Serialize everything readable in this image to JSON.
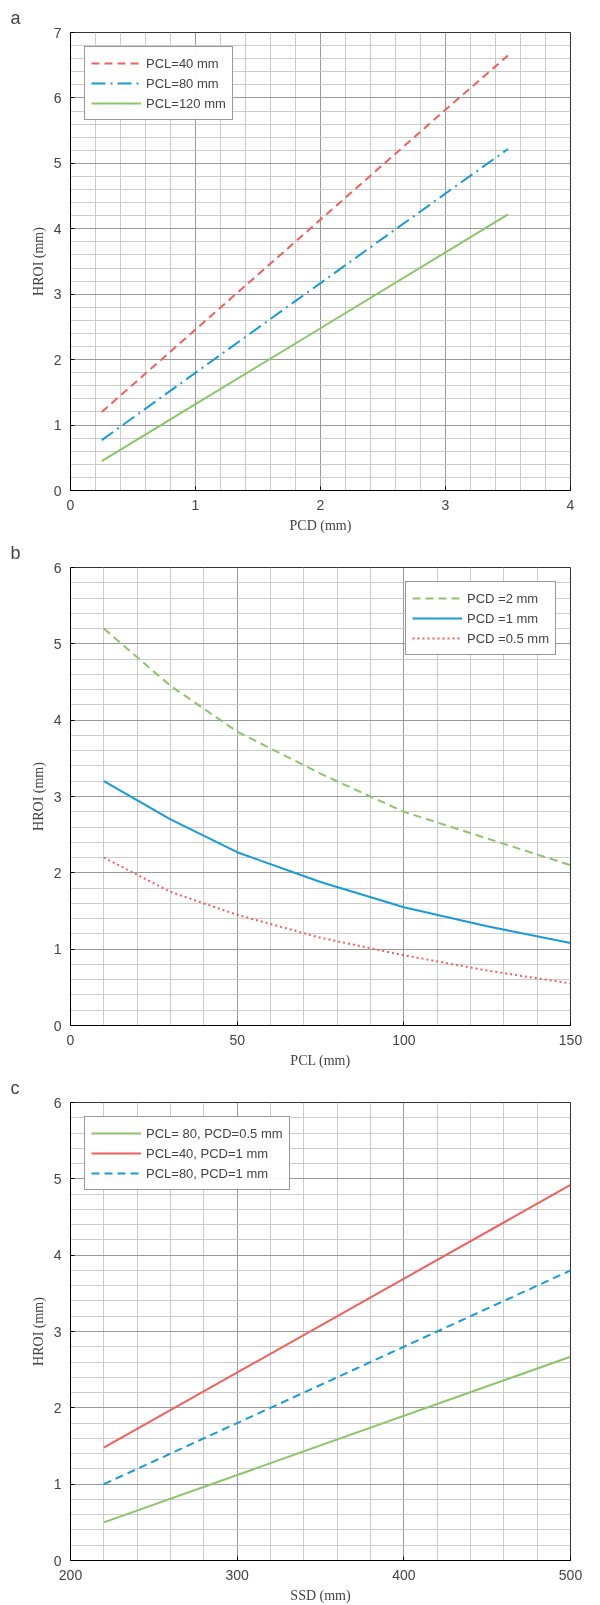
{
  "chart_data": [
    {
      "type": "line",
      "title": "a",
      "xlabel": "PCD (mm)",
      "ylabel": "HROI (mm)",
      "xlim": [
        0,
        4
      ],
      "xticks": [
        0,
        1,
        2,
        3,
        4
      ],
      "ylim": [
        0,
        7
      ],
      "yticks": [
        0,
        1,
        2,
        3,
        4,
        5,
        6,
        7
      ],
      "grid": true,
      "legend": "top left",
      "x": [
        0.25,
        1,
        2,
        3,
        3.5
      ],
      "series": [
        {
          "name": "PCL=40 mm",
          "color": "#f0605d",
          "line_style": "dashed",
          "values": [
            1.2,
            2.46,
            4.14,
            5.82,
            6.65
          ]
        },
        {
          "name": "PCL=80 mm",
          "color": "#1a9ad6",
          "line_style": "dashdot",
          "values": [
            0.77,
            1.8,
            3.17,
            4.54,
            5.22
          ]
        },
        {
          "name": "PCL=120 mm",
          "color": "#8dc56b",
          "line_style": "solid",
          "values": [
            0.45,
            1.32,
            2.48,
            3.64,
            4.22
          ]
        }
      ]
    },
    {
      "type": "line",
      "title": "b",
      "xlabel": "PCL (mm)",
      "ylabel": "HROI (mm)",
      "xlim": [
        0,
        150
      ],
      "xticks": [
        0,
        50,
        100,
        150
      ],
      "ylim": [
        0,
        6
      ],
      "yticks": [
        0,
        1,
        2,
        3,
        4,
        5,
        6
      ],
      "grid": true,
      "legend": "top right",
      "x": [
        10,
        30,
        50,
        75,
        100,
        125,
        150
      ],
      "series": [
        {
          "name": "PCD =2 mm",
          "color": "#8dc56b",
          "line_style": "dashed",
          "values": [
            5.2,
            4.45,
            3.85,
            3.3,
            2.8,
            2.45,
            2.1
          ]
        },
        {
          "name": "PCD =1 mm",
          "color": "#1a9ad6",
          "line_style": "solid",
          "values": [
            3.2,
            2.7,
            2.27,
            1.88,
            1.55,
            1.3,
            1.08
          ]
        },
        {
          "name": "PCD =0.5 mm",
          "color": "#f0605d",
          "line_style": "dotted",
          "values": [
            2.2,
            1.75,
            1.45,
            1.15,
            0.92,
            0.72,
            0.55
          ]
        }
      ]
    },
    {
      "type": "line",
      "title": "c",
      "xlabel": "SSD (mm)",
      "ylabel": "HROI (mm)",
      "xlim": [
        200,
        500
      ],
      "xticks": [
        200,
        300,
        400,
        500
      ],
      "ylim": [
        0,
        6
      ],
      "yticks": [
        0,
        1,
        2,
        3,
        4,
        5,
        6
      ],
      "grid": true,
      "legend": "top left",
      "x": [
        220,
        500
      ],
      "series": [
        {
          "name": "PCL= 80, PCD=0.5 mm",
          "color": "#8dc56b",
          "line_style": "solid",
          "values": [
            0.5,
            2.67
          ]
        },
        {
          "name": "PCL=40, PCD=1 mm",
          "color": "#f0605d",
          "line_style": "solid",
          "values": [
            1.48,
            4.92
          ]
        },
        {
          "name": "PCL=80, PCD=1 mm",
          "color": "#1a9ad6",
          "line_style": "dashed",
          "values": [
            1.0,
            3.8
          ]
        }
      ]
    }
  ]
}
